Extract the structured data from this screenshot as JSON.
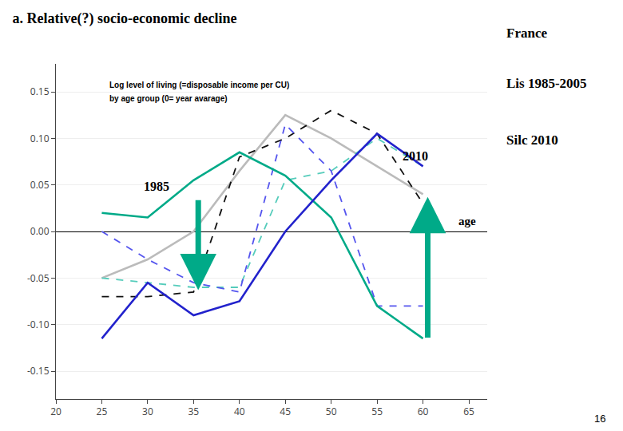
{
  "chart_data": {
    "type": "line",
    "title": "a. Relative(?) socio-economic decline",
    "subtitle": [
      "Log level of living (=disposable income per CU)",
      "by age group (0= year avarage)"
    ],
    "annotations": [
      "France",
      "Lis 1985-2005",
      "Silc 2010",
      "1985",
      "2010",
      "age",
      "16"
    ],
    "x": [
      25,
      30,
      35,
      40,
      45,
      50,
      55,
      60
    ],
    "series": [
      {
        "color": "#BBBBBB",
        "line_style": "solid",
        "values": [
          -0.05,
          -0.03,
          0.0,
          0.065,
          0.125,
          0.1,
          0.07,
          0.04
        ]
      },
      {
        "color": "#55CCBB",
        "line_style": "dashed",
        "values": [
          -0.05,
          -0.055,
          -0.06,
          -0.06,
          0.055,
          0.065,
          0.1,
          0.07
        ]
      },
      {
        "color": "#111111",
        "line_style": "dashed",
        "values": [
          -0.07,
          -0.07,
          -0.065,
          0.08,
          0.1,
          0.13,
          0.105,
          0.03
        ]
      },
      {
        "color": "#5555EE",
        "line_style": "dashed",
        "values": [
          0.0,
          -0.03,
          -0.055,
          -0.065,
          0.115,
          0.065,
          -0.08,
          -0.08
        ]
      },
      {
        "color": "#00AA88",
        "line_style": "solid",
        "values": [
          0.02,
          0.015,
          0.055,
          0.085,
          0.06,
          0.015,
          -0.08,
          -0.115
        ]
      },
      {
        "color": "#2222CC",
        "line_style": "solid",
        "values": [
          -0.115,
          -0.055,
          -0.09,
          -0.075,
          0.0,
          0.055,
          0.105,
          0.07
        ]
      }
    ],
    "xlim": [
      20,
      67
    ],
    "xticks": [
      20,
      25,
      30,
      35,
      40,
      45,
      50,
      55,
      60,
      65
    ],
    "ylim": [
      -0.18,
      0.18
    ],
    "yticks": [
      -0.15,
      {
        "value": -0.1,
        "label": "-0.10"
      },
      -0.05,
      {
        "value": 0,
        "label": "0.00"
      },
      0.05,
      {
        "value": 0.1,
        "label": "0.10"
      },
      0.15
    ],
    "grid": "y"
  }
}
